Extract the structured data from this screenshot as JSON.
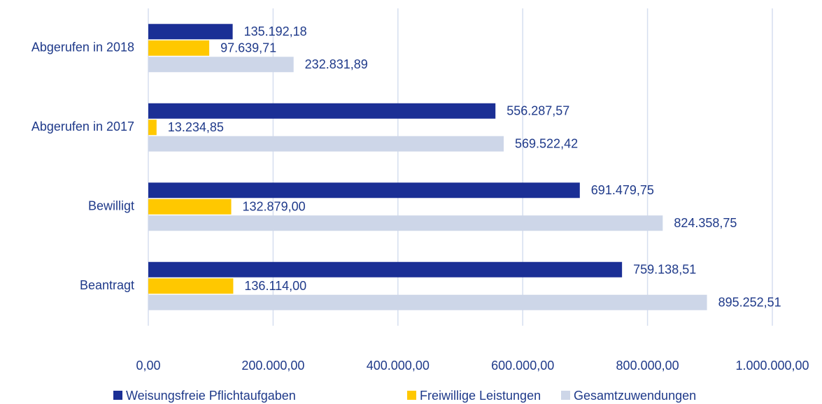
{
  "chart_data": {
    "type": "hbar",
    "categories": [
      "Abgerufen in 2018",
      "Abgerufen in 2017",
      "Bewilligt",
      "Beantragt"
    ],
    "series": [
      {
        "name": "Weisungsfreie Pflichtaufgaben",
        "color": "#1b2f95",
        "values": [
          135192.18,
          556287.57,
          691479.75,
          759138.51
        ],
        "value_labels": [
          "135.192,18",
          "556.287,57",
          "691.479,75",
          "759.138,51"
        ]
      },
      {
        "name": "Freiwillige Leistungen",
        "color": "#ffc800",
        "values": [
          97639.71,
          13234.85,
          132879.0,
          136114.0
        ],
        "value_labels": [
          "97.639,71",
          "13.234,85",
          "132.879,00",
          "136.114,00"
        ]
      },
      {
        "name": "Gesamtzuwendungen",
        "color": "#cdd6e8",
        "values": [
          232831.89,
          569522.42,
          824358.75,
          895252.51
        ],
        "value_labels": [
          "232.831,89",
          "569.522,42",
          "824.358,75",
          "895.252,51"
        ]
      }
    ],
    "xlim": [
      0,
      1000000
    ],
    "xticks": [
      {
        "value": 0,
        "label": "0,00"
      },
      {
        "value": 200000,
        "label": "200.000,00"
      },
      {
        "value": 400000,
        "label": "400.000,00"
      },
      {
        "value": 600000,
        "label": "600.000,00"
      },
      {
        "value": 800000,
        "label": "800.000,00"
      },
      {
        "value": 1000000,
        "label": "1.000.000,00"
      }
    ],
    "grid": true,
    "legend": "bottom"
  }
}
